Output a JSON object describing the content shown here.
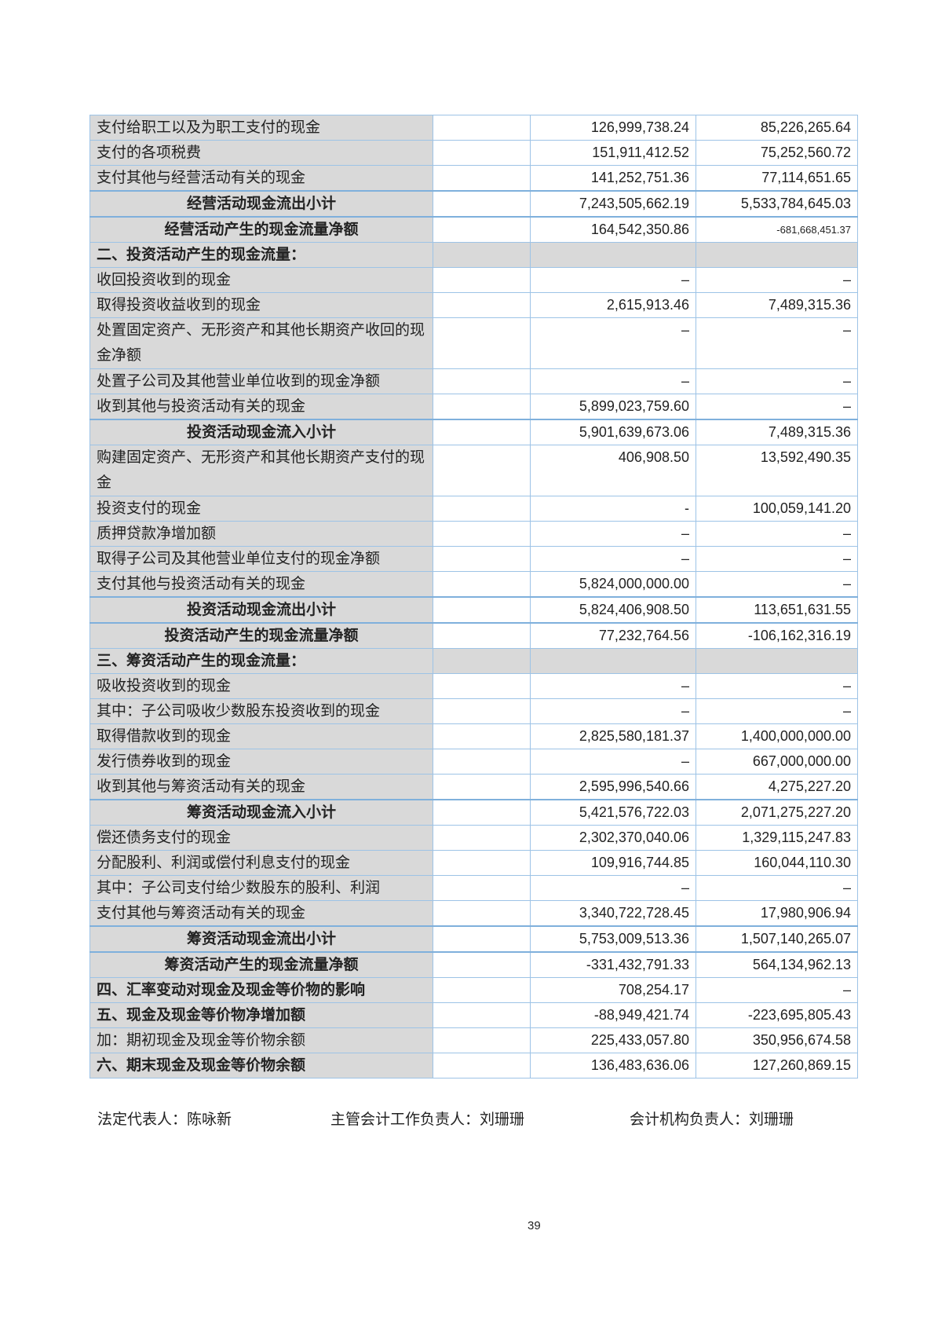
{
  "rows": [
    {
      "label": "支付给职工以及为职工支付的现金",
      "current": "126,999,738.24",
      "prior": "85,226,265.64",
      "type": "item"
    },
    {
      "label": "支付的各项税费",
      "current": "151,911,412.52",
      "prior": "75,252,560.72",
      "type": "item"
    },
    {
      "label": "支付其他与经营活动有关的现金",
      "current": "141,252,751.36",
      "prior": "77,114,651.65",
      "type": "item"
    },
    {
      "label": "经营活动现金流出小计",
      "current": "7,243,505,662.19",
      "prior": "5,533,784,645.03",
      "type": "sub"
    },
    {
      "label": "经营活动产生的现金流量净额",
      "current": "164,542,350.86",
      "prior": "-681,668,451.37",
      "type": "sub"
    },
    {
      "label": "二、投资活动产生的现金流量：",
      "current": "",
      "prior": "",
      "type": "hdr"
    },
    {
      "label": "收回投资收到的现金",
      "current": "–",
      "prior": "–",
      "type": "item"
    },
    {
      "label": "取得投资收益收到的现金",
      "current": "2,615,913.46",
      "prior": "7,489,315.36",
      "type": "item"
    },
    {
      "label": "处置固定资产、无形资产和其他长期资产收回的现金净额",
      "current": "–",
      "prior": "–",
      "type": "two"
    },
    {
      "label": "处置子公司及其他营业单位收到的现金净额",
      "current": "–",
      "prior": "–",
      "type": "item"
    },
    {
      "label": "收到其他与投资活动有关的现金",
      "current": "5,899,023,759.60",
      "prior": "–",
      "type": "item"
    },
    {
      "label": "投资活动现金流入小计",
      "current": "5,901,639,673.06",
      "prior": "7,489,315.36",
      "type": "sub"
    },
    {
      "label": "购建固定资产、无形资产和其他长期资产支付的现金",
      "current": "406,908.50",
      "prior": "13,592,490.35",
      "type": "two"
    },
    {
      "label": "投资支付的现金",
      "current": "-",
      "prior": "100,059,141.20",
      "type": "item"
    },
    {
      "label": "质押贷款净增加额",
      "current": "–",
      "prior": "–",
      "type": "item"
    },
    {
      "label": "取得子公司及其他营业单位支付的现金净额",
      "current": "–",
      "prior": "–",
      "type": "item"
    },
    {
      "label": "支付其他与投资活动有关的现金",
      "current": "5,824,000,000.00",
      "prior": "–",
      "type": "item"
    },
    {
      "label": "投资活动现金流出小计",
      "current": "5,824,406,908.50",
      "prior": "113,651,631.55",
      "type": "sub"
    },
    {
      "label": "投资活动产生的现金流量净额",
      "current": "77,232,764.56",
      "prior": "-106,162,316.19",
      "type": "sub"
    },
    {
      "label": "三、筹资活动产生的现金流量：",
      "current": "",
      "prior": "",
      "type": "hdr"
    },
    {
      "label": "吸收投资收到的现金",
      "current": "–",
      "prior": "–",
      "type": "item"
    },
    {
      "label": "其中：子公司吸收少数股东投资收到的现金",
      "current": "–",
      "prior": "–",
      "type": "item"
    },
    {
      "label": "取得借款收到的现金",
      "current": "2,825,580,181.37",
      "prior": "1,400,000,000.00",
      "type": "item"
    },
    {
      "label": "发行债券收到的现金",
      "current": "–",
      "prior": "667,000,000.00",
      "type": "item"
    },
    {
      "label": "收到其他与筹资活动有关的现金",
      "current": "2,595,996,540.66",
      "prior": "4,275,227.20",
      "type": "item"
    },
    {
      "label": "筹资活动现金流入小计",
      "current": "5,421,576,722.03",
      "prior": "2,071,275,227.20",
      "type": "sub"
    },
    {
      "label": "偿还债务支付的现金",
      "current": "2,302,370,040.06",
      "prior": "1,329,115,247.83",
      "type": "item"
    },
    {
      "label": "分配股利、利润或偿付利息支付的现金",
      "current": "109,916,744.85",
      "prior": "160,044,110.30",
      "type": "item"
    },
    {
      "label": "其中：子公司支付给少数股东的股利、利润",
      "current": "–",
      "prior": "–",
      "type": "item"
    },
    {
      "label": "支付其他与筹资活动有关的现金",
      "current": "3,340,722,728.45",
      "prior": "17,980,906.94",
      "type": "item"
    },
    {
      "label": "筹资活动现金流出小计",
      "current": "5,753,009,513.36",
      "prior": "1,507,140,265.07",
      "type": "sub"
    },
    {
      "label": "筹资活动产生的现金流量净额",
      "current": "-331,432,791.33",
      "prior": "564,134,962.13",
      "type": "sub"
    },
    {
      "label": "四、汇率变动对现金及现金等价物的影响",
      "current": "708,254.17",
      "prior": "–",
      "type": "bold"
    },
    {
      "label": "五、现金及现金等价物净增加额",
      "current": "-88,949,421.74",
      "prior": "-223,695,805.43",
      "type": "bold"
    },
    {
      "label": "加：期初现金及现金等价物余额",
      "current": "225,433,057.80",
      "prior": "350,956,674.58",
      "type": "item"
    },
    {
      "label": "六、期末现金及现金等价物余额",
      "current": "136,483,636.06",
      "prior": "127,260,869.15",
      "type": "bold"
    }
  ],
  "signatures": {
    "legal_rep": "法定代表人：陈咏新",
    "accounting_head": "主管会计工作负责人：刘珊珊",
    "accounting_org_head": "会计机构负责人：刘珊珊"
  },
  "page_number": "39"
}
